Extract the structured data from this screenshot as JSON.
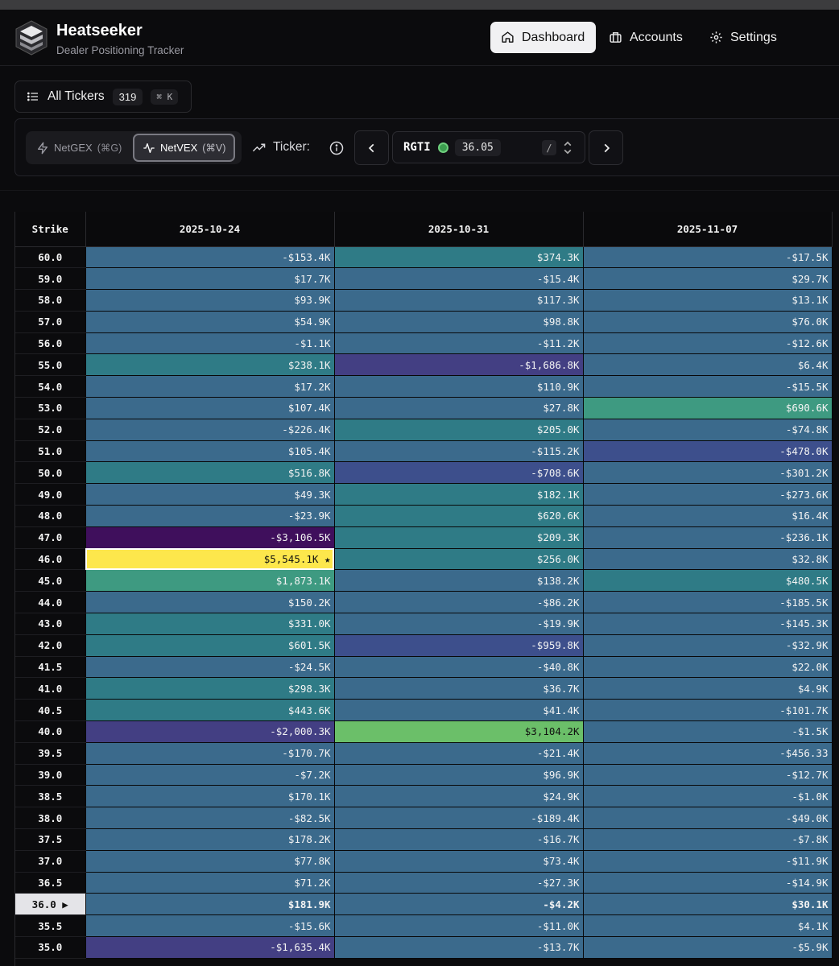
{
  "app": {
    "title": "Heatseeker",
    "subtitle": "Dealer Positioning Tracker"
  },
  "nav": [
    {
      "label": "Dashboard",
      "icon": "home-icon",
      "active": true
    },
    {
      "label": "Accounts",
      "icon": "briefcase-icon",
      "active": false
    },
    {
      "label": "Settings",
      "icon": "gear-icon",
      "active": false
    }
  ],
  "all_tickers": {
    "label": "All Tickers",
    "count": "319",
    "shortcut": "⌘ K"
  },
  "controls": {
    "netgex": {
      "label": "NetGEX",
      "shortcut": "(⌘G)",
      "active": false
    },
    "netvex": {
      "label": "NetVEX",
      "shortcut": "(⌘V)",
      "active": true
    },
    "ticker_label": "Ticker:",
    "ticker_symbol": "RGTI",
    "ticker_price": "36.05",
    "slash_hint": "/"
  },
  "colors": {
    "teal": "#2f7b86",
    "blue": "#3b6a8c",
    "deep_blue": "#3d4f8c",
    "purple": "#433f83",
    "dark_purple": "#3f0f5c",
    "green_teal": "#3e9a81",
    "green": "#6bbf69",
    "yellow": "#fde74c"
  },
  "table": {
    "strike_header": "Strike",
    "expirations": [
      "2025-10-24",
      "2025-10-31",
      "2025-11-07"
    ],
    "current_marker": "▶",
    "star_marker": "★",
    "rows": [
      {
        "strike": "60.0",
        "cells": [
          [
            "-$153.4K",
            "blue"
          ],
          [
            "$374.3K",
            "teal"
          ],
          [
            "-$17.5K",
            "blue"
          ]
        ]
      },
      {
        "strike": "59.0",
        "cells": [
          [
            "$17.7K",
            "blue"
          ],
          [
            "-$15.4K",
            "blue"
          ],
          [
            "$29.7K",
            "blue"
          ]
        ]
      },
      {
        "strike": "58.0",
        "cells": [
          [
            "$93.9K",
            "blue"
          ],
          [
            "$117.3K",
            "blue"
          ],
          [
            "$13.1K",
            "blue"
          ]
        ]
      },
      {
        "strike": "57.0",
        "cells": [
          [
            "$54.9K",
            "blue"
          ],
          [
            "$98.8K",
            "blue"
          ],
          [
            "$76.0K",
            "blue"
          ]
        ]
      },
      {
        "strike": "56.0",
        "cells": [
          [
            "-$1.1K",
            "blue"
          ],
          [
            "-$11.2K",
            "blue"
          ],
          [
            "-$12.6K",
            "blue"
          ]
        ]
      },
      {
        "strike": "55.0",
        "cells": [
          [
            "$238.1K",
            "teal"
          ],
          [
            "-$1,686.8K",
            "purple"
          ],
          [
            "$6.4K",
            "blue"
          ]
        ]
      },
      {
        "strike": "54.0",
        "cells": [
          [
            "$17.2K",
            "blue"
          ],
          [
            "$110.9K",
            "blue"
          ],
          [
            "-$15.5K",
            "blue"
          ]
        ]
      },
      {
        "strike": "53.0",
        "cells": [
          [
            "$107.4K",
            "blue"
          ],
          [
            "$27.8K",
            "blue"
          ],
          [
            "$690.6K",
            "green_teal"
          ]
        ]
      },
      {
        "strike": "52.0",
        "cells": [
          [
            "-$226.4K",
            "blue"
          ],
          [
            "$205.0K",
            "teal"
          ],
          [
            "-$74.8K",
            "blue"
          ]
        ]
      },
      {
        "strike": "51.0",
        "cells": [
          [
            "$105.4K",
            "blue"
          ],
          [
            "-$115.2K",
            "blue"
          ],
          [
            "-$478.0K",
            "deep_blue"
          ]
        ]
      },
      {
        "strike": "50.0",
        "cells": [
          [
            "$516.8K",
            "teal"
          ],
          [
            "-$708.6K",
            "deep_blue"
          ],
          [
            "-$301.2K",
            "blue"
          ]
        ]
      },
      {
        "strike": "49.0",
        "cells": [
          [
            "$49.3K",
            "blue"
          ],
          [
            "$182.1K",
            "teal"
          ],
          [
            "-$273.6K",
            "blue"
          ]
        ]
      },
      {
        "strike": "48.0",
        "cells": [
          [
            "-$23.9K",
            "blue"
          ],
          [
            "$620.6K",
            "teal"
          ],
          [
            "$16.4K",
            "blue"
          ]
        ]
      },
      {
        "strike": "47.0",
        "cells": [
          [
            "-$3,106.5K",
            "dark_purple"
          ],
          [
            "$209.3K",
            "teal"
          ],
          [
            "-$236.1K",
            "blue"
          ]
        ]
      },
      {
        "strike": "46.0",
        "cells": [
          [
            "$5,545.1K",
            "yellow"
          ],
          [
            "$256.0K",
            "teal"
          ],
          [
            "$32.8K",
            "blue"
          ]
        ],
        "star": 0
      },
      {
        "strike": "45.0",
        "cells": [
          [
            "$1,873.1K",
            "green_teal"
          ],
          [
            "$138.2K",
            "blue"
          ],
          [
            "$480.5K",
            "teal"
          ]
        ]
      },
      {
        "strike": "44.0",
        "cells": [
          [
            "$150.2K",
            "blue"
          ],
          [
            "-$86.2K",
            "blue"
          ],
          [
            "-$185.5K",
            "blue"
          ]
        ]
      },
      {
        "strike": "43.0",
        "cells": [
          [
            "$331.0K",
            "teal"
          ],
          [
            "-$19.9K",
            "blue"
          ],
          [
            "-$145.3K",
            "blue"
          ]
        ]
      },
      {
        "strike": "42.0",
        "cells": [
          [
            "$601.5K",
            "teal"
          ],
          [
            "-$959.8K",
            "deep_blue"
          ],
          [
            "-$32.9K",
            "blue"
          ]
        ]
      },
      {
        "strike": "41.5",
        "cells": [
          [
            "-$24.5K",
            "blue"
          ],
          [
            "-$40.8K",
            "blue"
          ],
          [
            "$22.0K",
            "blue"
          ]
        ]
      },
      {
        "strike": "41.0",
        "cells": [
          [
            "$298.3K",
            "teal"
          ],
          [
            "$36.7K",
            "blue"
          ],
          [
            "$4.9K",
            "blue"
          ]
        ]
      },
      {
        "strike": "40.5",
        "cells": [
          [
            "$443.6K",
            "teal"
          ],
          [
            "$41.4K",
            "blue"
          ],
          [
            "-$101.7K",
            "blue"
          ]
        ]
      },
      {
        "strike": "40.0",
        "cells": [
          [
            "-$2,000.3K",
            "purple"
          ],
          [
            "$3,104.2K",
            "green"
          ],
          [
            "-$1.5K",
            "blue"
          ]
        ]
      },
      {
        "strike": "39.5",
        "cells": [
          [
            "-$170.7K",
            "blue"
          ],
          [
            "-$21.4K",
            "blue"
          ],
          [
            "-$456.33",
            "blue"
          ]
        ]
      },
      {
        "strike": "39.0",
        "cells": [
          [
            "-$7.2K",
            "blue"
          ],
          [
            "$96.9K",
            "blue"
          ],
          [
            "-$12.7K",
            "blue"
          ]
        ]
      },
      {
        "strike": "38.5",
        "cells": [
          [
            "$170.1K",
            "blue"
          ],
          [
            "$24.9K",
            "blue"
          ],
          [
            "-$1.0K",
            "blue"
          ]
        ]
      },
      {
        "strike": "38.0",
        "cells": [
          [
            "-$82.5K",
            "blue"
          ],
          [
            "-$189.4K",
            "blue"
          ],
          [
            "-$49.0K",
            "blue"
          ]
        ]
      },
      {
        "strike": "37.5",
        "cells": [
          [
            "$178.2K",
            "blue"
          ],
          [
            "-$16.7K",
            "blue"
          ],
          [
            "-$7.8K",
            "blue"
          ]
        ]
      },
      {
        "strike": "37.0",
        "cells": [
          [
            "$77.8K",
            "blue"
          ],
          [
            "$73.4K",
            "blue"
          ],
          [
            "-$11.9K",
            "blue"
          ]
        ]
      },
      {
        "strike": "36.5",
        "cells": [
          [
            "$71.2K",
            "blue"
          ],
          [
            "-$27.3K",
            "blue"
          ],
          [
            "-$14.9K",
            "blue"
          ]
        ]
      },
      {
        "strike": "36.0",
        "cells": [
          [
            "$181.9K",
            "blue"
          ],
          [
            "-$4.2K",
            "blue"
          ],
          [
            "$30.1K",
            "blue"
          ]
        ],
        "current": true
      },
      {
        "strike": "35.5",
        "cells": [
          [
            "-$15.6K",
            "blue"
          ],
          [
            "-$11.0K",
            "blue"
          ],
          [
            "$4.1K",
            "blue"
          ]
        ]
      },
      {
        "strike": "35.0",
        "cells": [
          [
            "-$1,635.4K",
            "purple"
          ],
          [
            "-$13.7K",
            "blue"
          ],
          [
            "-$5.9K",
            "blue"
          ]
        ]
      }
    ]
  }
}
